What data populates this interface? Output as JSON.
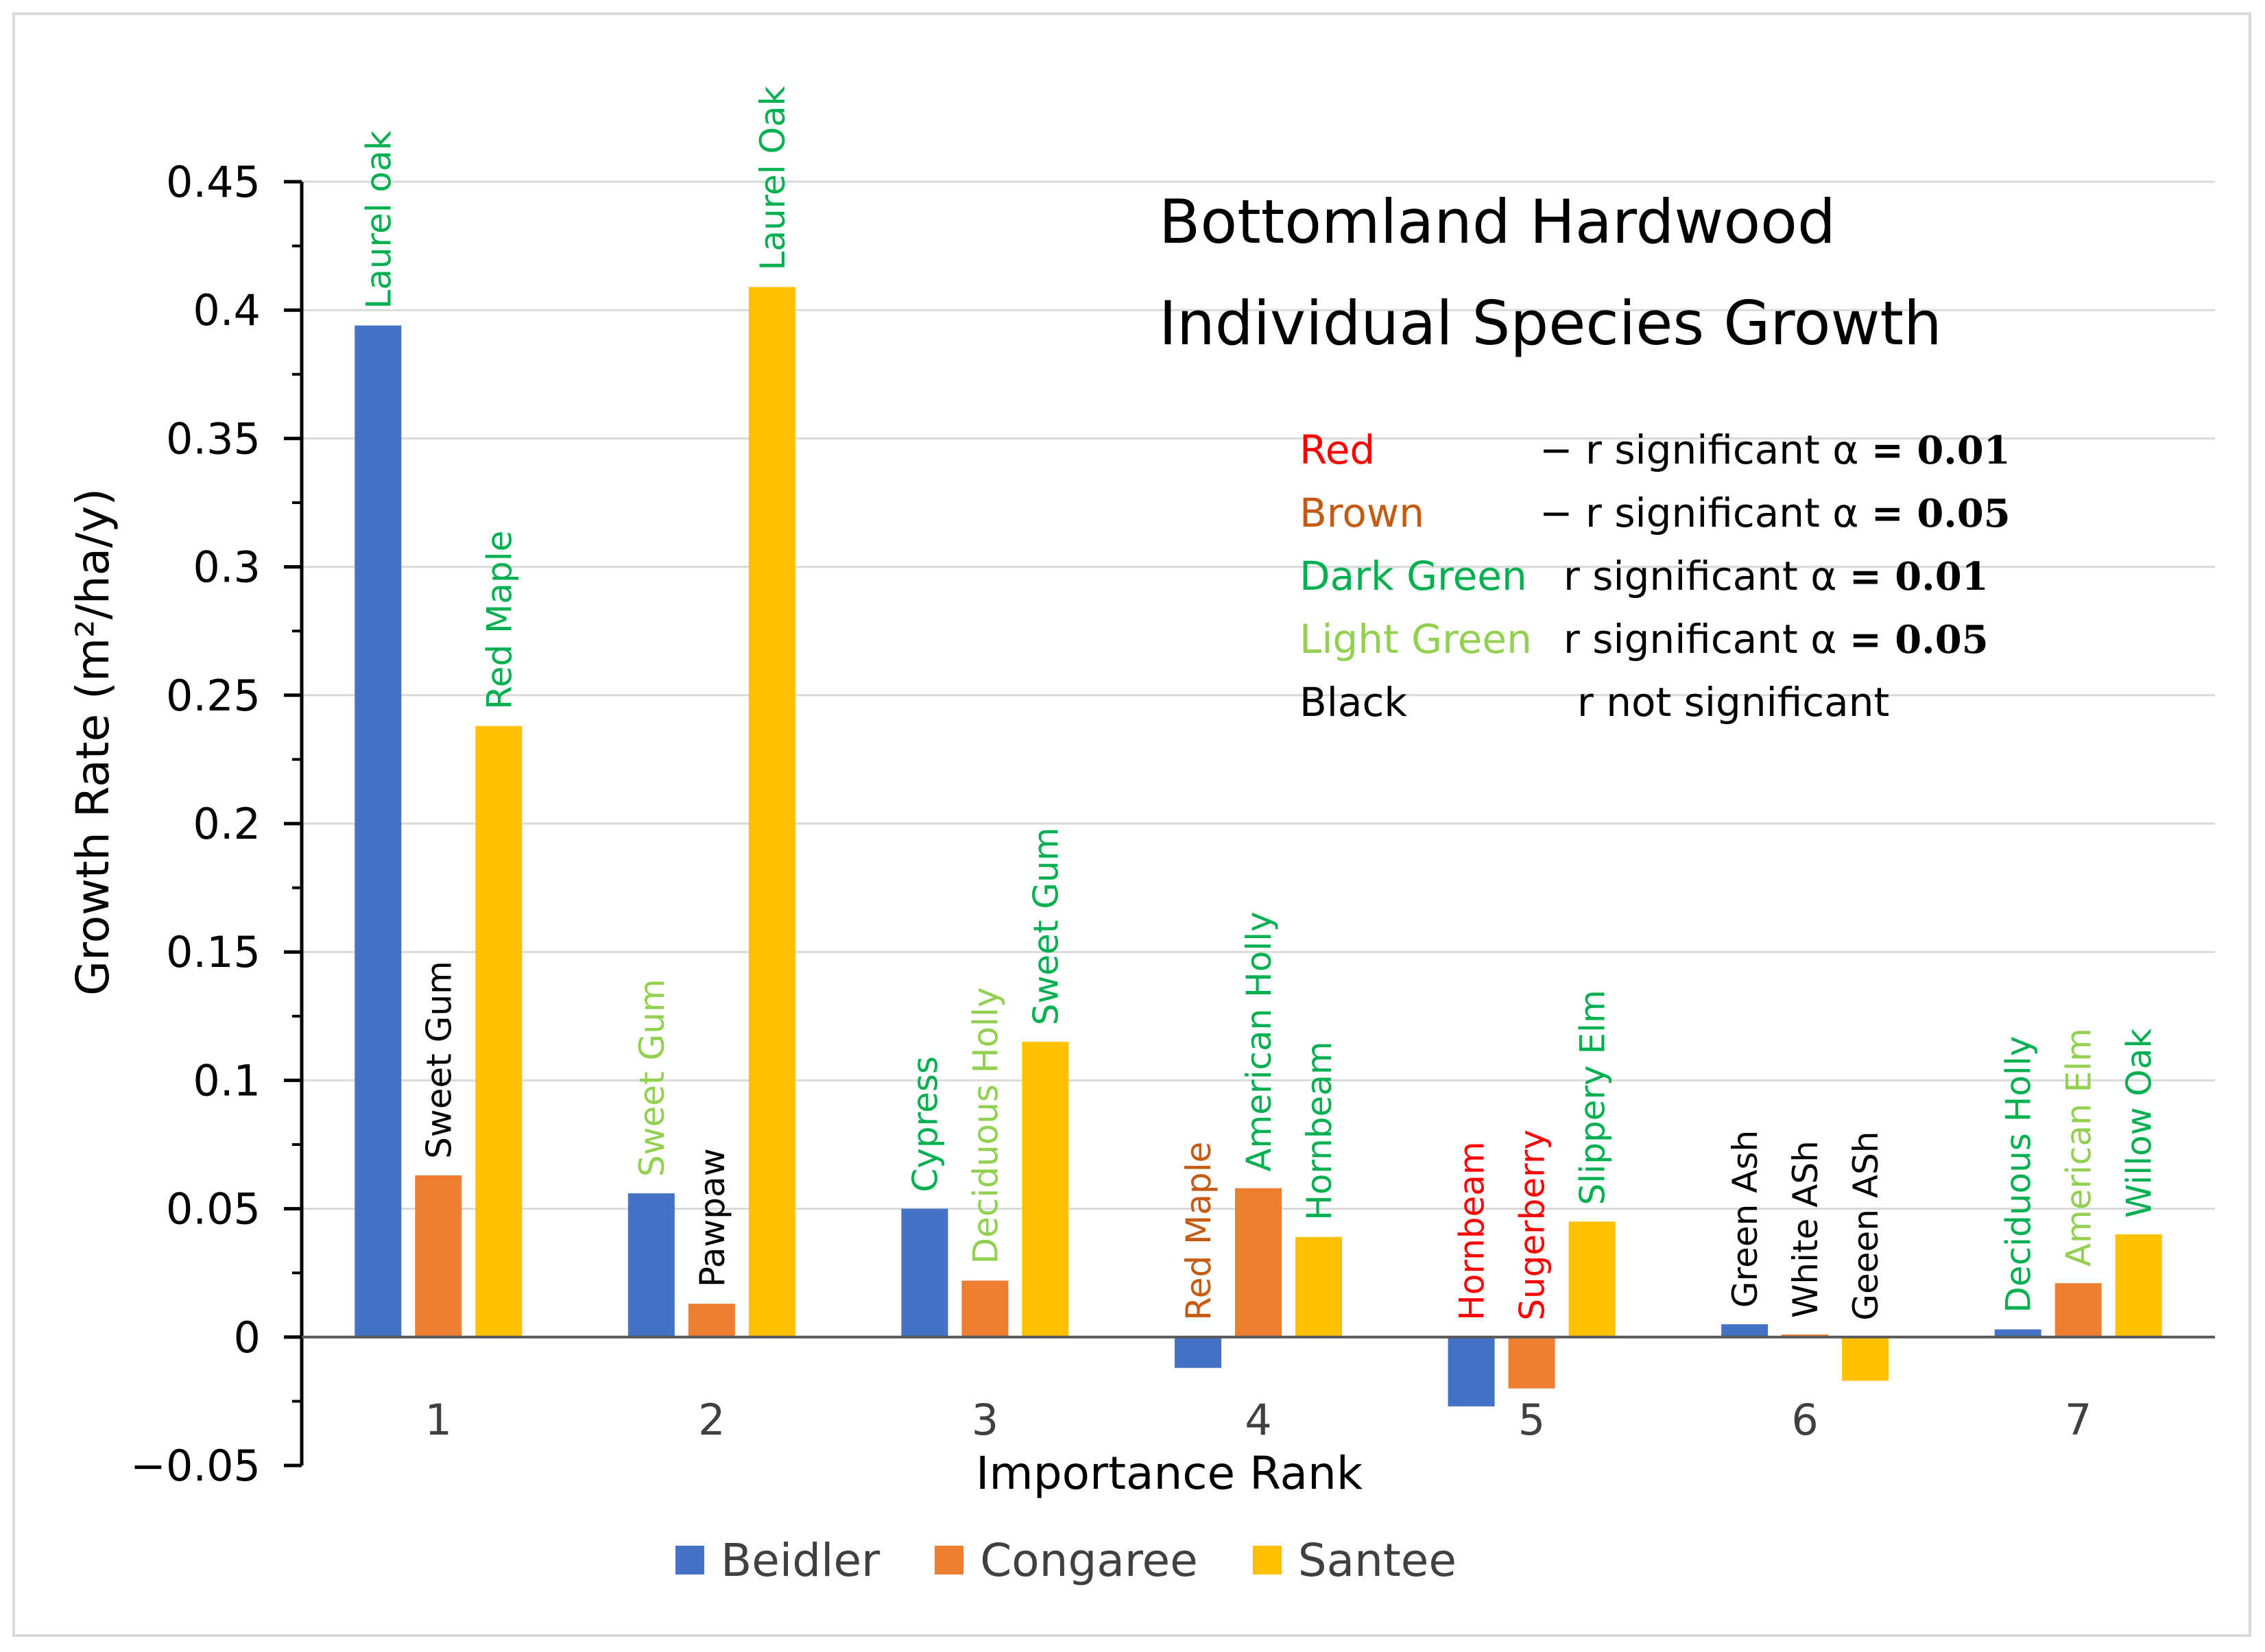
{
  "chart_data": {
    "type": "bar",
    "title": [
      "Bottomland Hardwood",
      "Individual Species Growth"
    ],
    "xlabel": "Importance Rank",
    "ylabel": "Growth Rate (m²/ha/y)",
    "ylim": [
      -0.05,
      0.45
    ],
    "yticks": [
      -0.05,
      0,
      0.05,
      0.1,
      0.15,
      0.2,
      0.25,
      0.3,
      0.35,
      0.4,
      0.45
    ],
    "ytick_labels": [
      "−0.05",
      "0",
      "0.05",
      "0.1",
      "0.15",
      "0.2",
      "0.25",
      "0.3",
      "0.35",
      "0.4",
      "0.45"
    ],
    "grid": "horizontal",
    "legend_position": "bottom",
    "categories": [
      "1",
      "2",
      "3",
      "4",
      "5",
      "6",
      "7"
    ],
    "series": [
      {
        "name": "Beidler",
        "color": "#4472C4",
        "values": [
          0.394,
          0.056,
          0.05,
          -0.012,
          -0.027,
          0.005,
          0.003
        ],
        "species": [
          "Laurel oak",
          "Sweet Gum",
          "Cypress",
          "Red Maple",
          "Hornbeam",
          "Green Ash",
          "Deciduous Holly"
        ],
        "label_colors": [
          "#00B050",
          "#92D050",
          "#00B050",
          "#C55A11",
          "#FF0000",
          "#000000",
          "#00B050"
        ]
      },
      {
        "name": "Congaree",
        "color": "#ED7D31",
        "values": [
          0.063,
          0.013,
          0.022,
          0.058,
          -0.02,
          0.001,
          0.021
        ],
        "species": [
          "Sweet Gum",
          "Pawpaw",
          "Deciduous Holly",
          "American Holly",
          "Sugerberry",
          "White ASh",
          "American Elm"
        ],
        "label_colors": [
          "#000000",
          "#000000",
          "#92D050",
          "#00B050",
          "#FF0000",
          "#000000",
          "#92D050"
        ]
      },
      {
        "name": "Santee",
        "color": "#FFC000",
        "values": [
          0.238,
          0.409,
          0.115,
          0.039,
          0.045,
          -0.017,
          0.04
        ],
        "species": [
          "Red Maple",
          "Laurel Oak",
          "Sweet Gum",
          "Hornbeam",
          "Slippery Elm",
          "Geeen ASh",
          "Willow Oak"
        ],
        "label_colors": [
          "#00B050",
          "#00B050",
          "#00B050",
          "#00B050",
          "#00B050",
          "#000000",
          "#00B050"
        ]
      }
    ],
    "significance_key": [
      {
        "name": "Red",
        "color": "#FF0000",
        "desc": "− r significant α",
        "alpha": "= 0.01"
      },
      {
        "name": "Brown",
        "color": "#C55A11",
        "desc": "− r significant α",
        "alpha": "= 0.05"
      },
      {
        "name": "Dark Green",
        "color": "#00B050",
        "desc": "r significant α",
        "alpha": "= 0.01"
      },
      {
        "name": "Light Green",
        "color": "#92D050",
        "desc": "r significant α",
        "alpha": "= 0.05"
      },
      {
        "name": "Black",
        "color": "#000000",
        "desc": "r not significant",
        "alpha": ""
      }
    ]
  }
}
